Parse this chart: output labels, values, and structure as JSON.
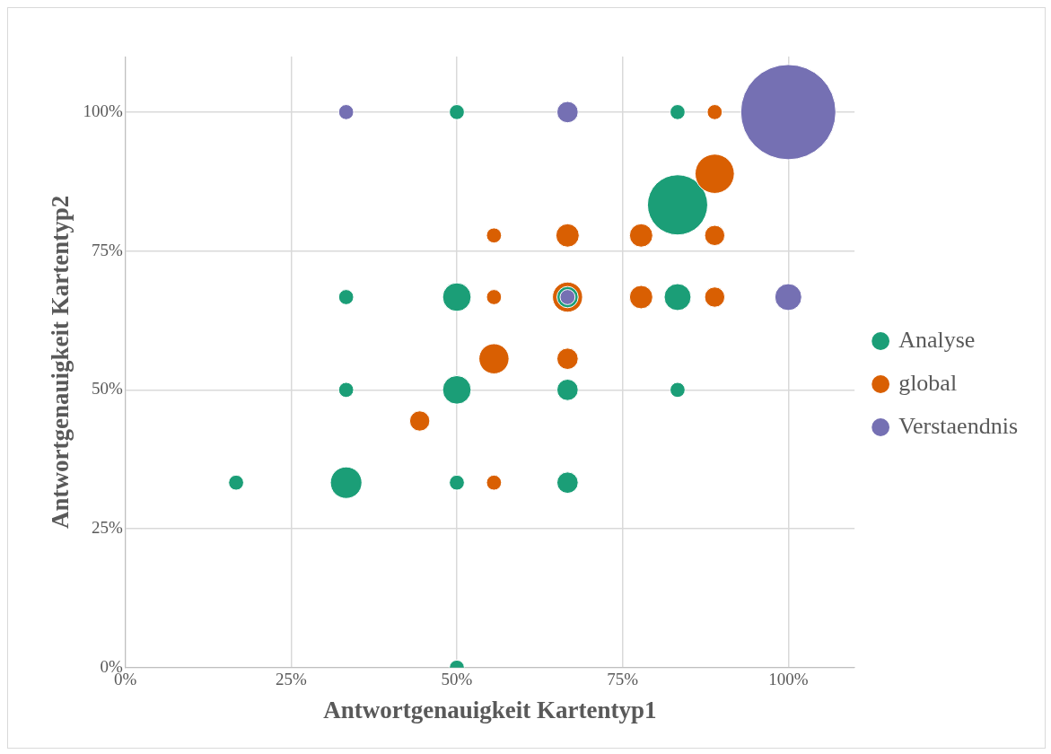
{
  "chart_data": {
    "type": "bubble",
    "xlabel": "Antwortgenauigkeit Kartentyp1",
    "ylabel": "Antwortgenauigkeit Kartentyp2",
    "xlim": [
      0,
      110
    ],
    "ylim": [
      0,
      110
    ],
    "xticks": [
      {
        "value": 0,
        "label": "0%"
      },
      {
        "value": 25,
        "label": "25%"
      },
      {
        "value": 50,
        "label": "50%"
      },
      {
        "value": 75,
        "label": "75%"
      },
      {
        "value": 100,
        "label": "100%"
      }
    ],
    "yticks": [
      {
        "value": 0,
        "label": "0%"
      },
      {
        "value": 25,
        "label": "25%"
      },
      {
        "value": 50,
        "label": "50%"
      },
      {
        "value": 75,
        "label": "75%"
      },
      {
        "value": 100,
        "label": "100%"
      }
    ],
    "grid": true,
    "legend": "right",
    "marker": "circle",
    "series": [
      {
        "name": "Analyse",
        "color": "#1b9e77",
        "x": [
          16.7,
          33.3,
          50,
          66.7,
          33.3,
          50,
          66.7,
          83.3,
          33.3,
          50,
          66.7,
          83.3,
          83.3,
          50,
          83.3,
          50
        ],
        "values": [
          33.3,
          33.3,
          33.3,
          33.3,
          50,
          50,
          50,
          50,
          66.7,
          66.7,
          66.7,
          66.7,
          83.3,
          100,
          100,
          0
        ],
        "sizes": [
          0.025,
          0.11,
          0.025,
          0.05,
          0.025,
          0.09,
          0.05,
          0.025,
          0.025,
          0.09,
          0.05,
          0.08,
          0.4,
          0.025,
          0.025,
          0.025
        ]
      },
      {
        "name": "global",
        "color": "#d95f02",
        "x": [
          44.4,
          55.6,
          66.7,
          55.6,
          55.6,
          66.7,
          77.8,
          88.9,
          55.6,
          66.7,
          77.8,
          88.9,
          88.9,
          88.9
        ],
        "values": [
          44.4,
          55.6,
          55.6,
          33.3,
          66.7,
          66.7,
          66.7,
          66.7,
          77.8,
          77.8,
          77.8,
          77.8,
          88.9,
          100
        ],
        "sizes": [
          0.045,
          0.1,
          0.05,
          0.025,
          0.025,
          0.1,
          0.06,
          0.045,
          0.025,
          0.06,
          0.06,
          0.045,
          0.17,
          0.025
        ]
      },
      {
        "name": "Verstaendnis",
        "color": "#7570b3",
        "x": [
          33.3,
          66.7,
          100,
          100,
          66.7
        ],
        "values": [
          100,
          100,
          100,
          66.7,
          66.7
        ],
        "sizes": [
          0.025,
          0.05,
          1,
          0.08,
          0.025
        ]
      }
    ]
  }
}
